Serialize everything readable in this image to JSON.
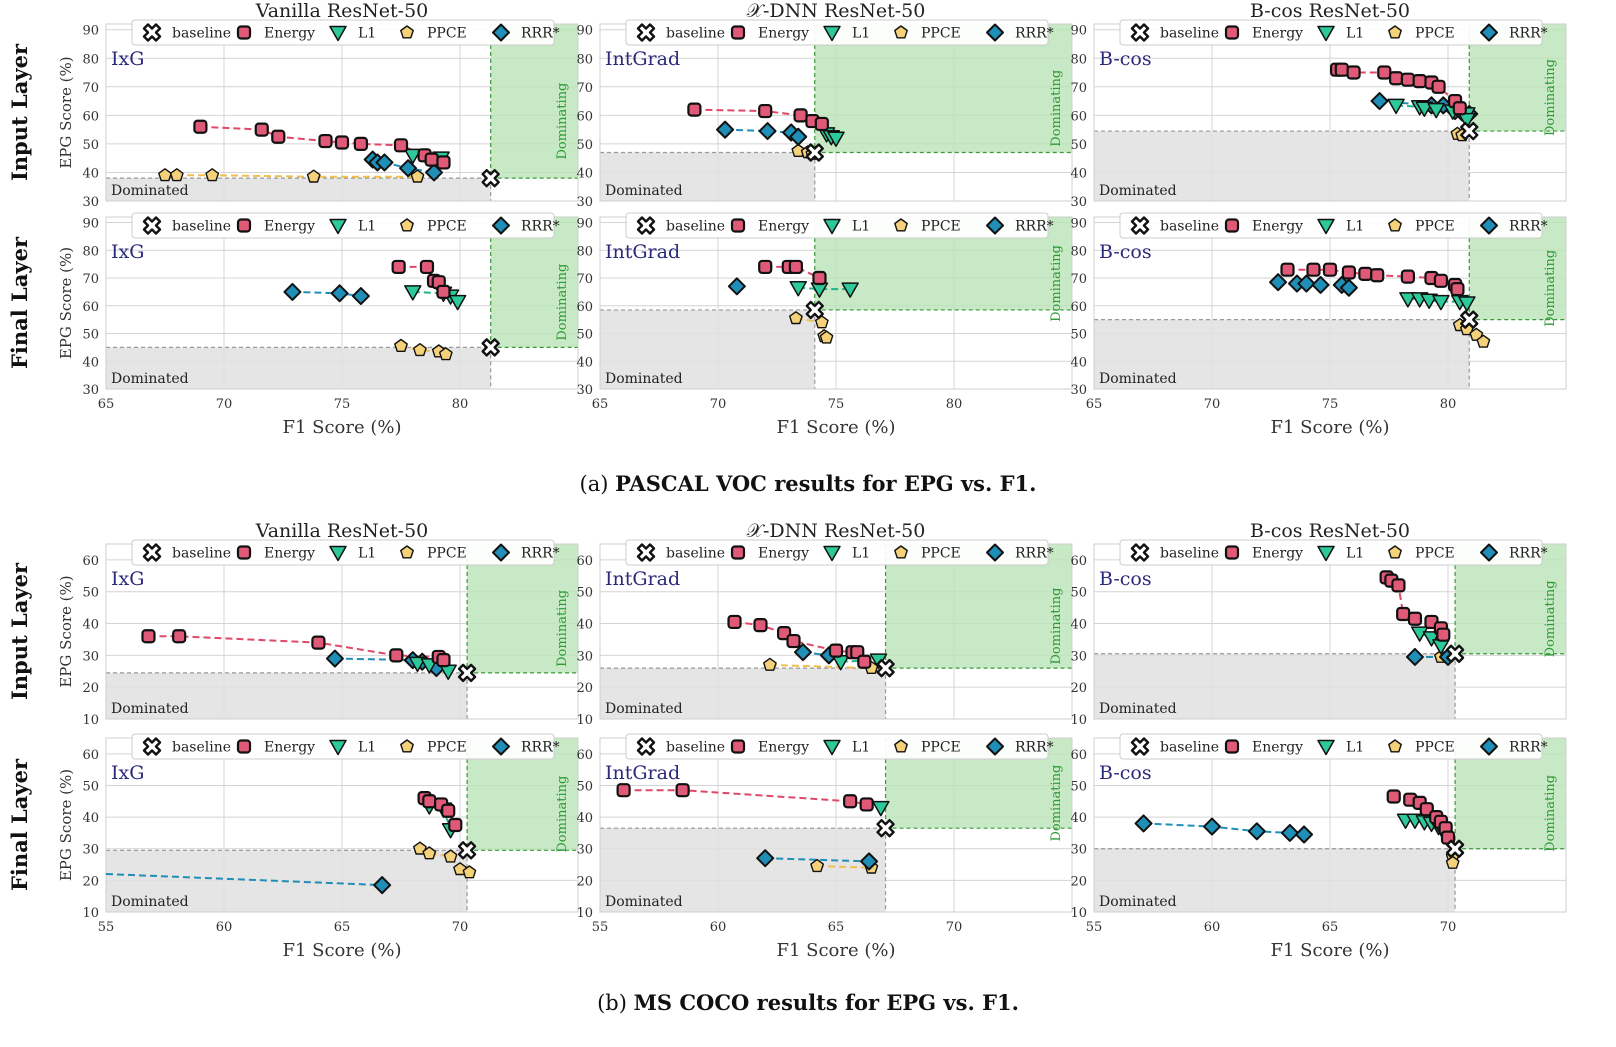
{
  "figure": {
    "captions": [
      {
        "prefix": "(a) ",
        "bold": "PASCAL VOC results for EPG vs. F1."
      },
      {
        "prefix": "(b) ",
        "bold": "MS COCO results for EPG vs. F1."
      }
    ],
    "column_titles": [
      "Vanilla ResNet-50",
      "𝒳-DNN ResNet-50",
      "B-cos ResNet-50"
    ],
    "row_labels": [
      "Input Layer",
      "Final Layer"
    ],
    "ylabel": "EPG Score (%)",
    "xlabel": "F1 Score (%)",
    "legend": [
      {
        "key": "baseline",
        "label": "baseline",
        "marker": "X",
        "color": "#ffffff"
      },
      {
        "key": "energy",
        "label": "Energy",
        "marker": "square",
        "color": "#e05a78"
      },
      {
        "key": "l1",
        "label": "L1",
        "marker": "triangle-down",
        "color": "#2ec99a"
      },
      {
        "key": "ppce",
        "label": "PPCE",
        "marker": "pentagon",
        "color": "#f5d27a"
      },
      {
        "key": "rrr",
        "label": "RRR*",
        "marker": "diamond",
        "color": "#1f8fb8"
      }
    ],
    "region_labels": {
      "dominated": "Dominated",
      "dominating": "Dominating"
    },
    "colors": {
      "dominated_fill": "#e0e0e0",
      "dominating_fill": "#b9e3b6",
      "dominating_text": "#2e9a36",
      "method_text": "#2a2a7a",
      "energy_line": "#e0486a",
      "l1_line": "#1eb686",
      "ppce_line": "#f1bf4e",
      "rrr_line": "#1f8fb8"
    }
  },
  "chart_data": [
    {
      "type": "scatter",
      "id": "voc-ixg-input",
      "dataset": "PASCAL VOC",
      "column": "Vanilla ResNet-50",
      "row": "Input Layer",
      "method": "IxG",
      "xlim": [
        65,
        85
      ],
      "ylim": [
        30,
        92
      ],
      "xticks": [
        65,
        70,
        75,
        80
      ],
      "yticks": [
        30,
        40,
        50,
        60,
        70,
        80,
        90
      ],
      "baseline": [
        81.3,
        38
      ],
      "energy": [
        [
          69,
          56
        ],
        [
          71.6,
          55
        ],
        [
          72.3,
          52.5
        ],
        [
          74.3,
          51
        ],
        [
          75,
          50.5
        ],
        [
          75.8,
          50
        ],
        [
          77.5,
          49.5
        ],
        [
          78.5,
          46
        ],
        [
          78.8,
          44.5
        ],
        [
          79.3,
          43.5
        ]
      ],
      "l1": [
        [
          78,
          46
        ],
        [
          79.2,
          45
        ]
      ],
      "ppce": [
        [
          67.5,
          39
        ],
        [
          68,
          39
        ],
        [
          69.5,
          39
        ],
        [
          73.8,
          38.5
        ],
        [
          78.2,
          38.5
        ]
      ],
      "rrr": [
        [
          76.3,
          44.5
        ],
        [
          76.5,
          43.5
        ],
        [
          76.8,
          43.5
        ],
        [
          77.8,
          41.5
        ],
        [
          78.9,
          40
        ]
      ]
    },
    {
      "type": "scatter",
      "id": "voc-xdnn-input",
      "dataset": "PASCAL VOC",
      "column": "𝒳-DNN ResNet-50",
      "row": "Input Layer",
      "method": "IntGrad",
      "xlim": [
        65,
        85
      ],
      "ylim": [
        30,
        92
      ],
      "xticks": [
        65,
        70,
        75,
        80
      ],
      "yticks": [
        30,
        40,
        50,
        60,
        70,
        80,
        90
      ],
      "baseline": [
        74.1,
        47
      ],
      "energy": [
        [
          69,
          62
        ],
        [
          72,
          61.5
        ],
        [
          73.5,
          60
        ],
        [
          74,
          58
        ],
        [
          74.4,
          57
        ]
      ],
      "l1": [
        [
          74.6,
          53.5
        ],
        [
          74.8,
          52.5
        ],
        [
          75,
          52
        ]
      ],
      "ppce": [
        [
          73.4,
          47.5
        ],
        [
          73.8,
          47
        ],
        [
          74,
          46.5
        ]
      ],
      "rrr": [
        [
          70.3,
          55
        ],
        [
          72.1,
          54.5
        ],
        [
          73.1,
          54
        ],
        [
          73.4,
          52.5
        ]
      ]
    },
    {
      "type": "scatter",
      "id": "voc-bcos-input",
      "dataset": "PASCAL VOC",
      "column": "B-cos ResNet-50",
      "row": "Input Layer",
      "method": "B-cos",
      "xlim": [
        65,
        85
      ],
      "ylim": [
        30,
        92
      ],
      "xticks": [
        65,
        70,
        75,
        80
      ],
      "yticks": [
        30,
        40,
        50,
        60,
        70,
        80,
        90
      ],
      "baseline": [
        80.9,
        54.5
      ],
      "energy": [
        [
          75.3,
          76
        ],
        [
          75.5,
          76
        ],
        [
          76,
          75
        ],
        [
          77.3,
          75
        ],
        [
          77.8,
          73
        ],
        [
          78.3,
          72.5
        ],
        [
          78.8,
          72
        ],
        [
          79.3,
          71.5
        ],
        [
          79.6,
          70
        ],
        [
          80.3,
          65
        ],
        [
          80.5,
          62.5
        ]
      ],
      "l1": [
        [
          77.8,
          63.5
        ],
        [
          78.8,
          63
        ],
        [
          79,
          62.5
        ],
        [
          79.5,
          62
        ],
        [
          80.2,
          61.5
        ],
        [
          80.8,
          60.5
        ],
        [
          80.8,
          58.5
        ]
      ],
      "ppce": [
        [
          80.4,
          53.5
        ],
        [
          80.6,
          53
        ]
      ],
      "rrr": [
        [
          77.1,
          65
        ],
        [
          79.3,
          63.5
        ],
        [
          79.8,
          63.5
        ],
        [
          80.3,
          61.5
        ],
        [
          80.6,
          61
        ],
        [
          80.9,
          60.5
        ]
      ]
    },
    {
      "type": "scatter",
      "id": "voc-ixg-final",
      "dataset": "PASCAL VOC",
      "column": "Vanilla ResNet-50",
      "row": "Final Layer",
      "method": "IxG",
      "xlim": [
        65,
        85
      ],
      "ylim": [
        30,
        92
      ],
      "xticks": [
        65,
        70,
        75,
        80
      ],
      "yticks": [
        30,
        40,
        50,
        60,
        70,
        80,
        90
      ],
      "baseline": [
        81.3,
        45
      ],
      "energy": [
        [
          77.4,
          74
        ],
        [
          78.6,
          74
        ],
        [
          78.9,
          69
        ],
        [
          79.1,
          68.5
        ],
        [
          79.3,
          65
        ]
      ],
      "l1": [
        [
          78,
          65
        ],
        [
          79.3,
          64.5
        ],
        [
          79.6,
          63.5
        ],
        [
          79.9,
          61.5
        ]
      ],
      "ppce": [
        [
          77.5,
          45.5
        ],
        [
          78.3,
          44
        ],
        [
          79.1,
          43.5
        ],
        [
          79.4,
          42.5
        ]
      ],
      "rrr": [
        [
          72.9,
          65
        ],
        [
          74.9,
          64.5
        ],
        [
          75.8,
          63.5
        ]
      ]
    },
    {
      "type": "scatter",
      "id": "voc-xdnn-final",
      "dataset": "PASCAL VOC",
      "column": "𝒳-DNN ResNet-50",
      "row": "Final Layer",
      "method": "IntGrad",
      "xlim": [
        65,
        85
      ],
      "ylim": [
        30,
        92
      ],
      "xticks": [
        65,
        70,
        75,
        80
      ],
      "yticks": [
        30,
        40,
        50,
        60,
        70,
        80,
        90
      ],
      "baseline": [
        74.1,
        58.5
      ],
      "energy": [
        [
          72,
          74
        ],
        [
          73,
          74
        ],
        [
          73.3,
          74
        ],
        [
          74.3,
          70
        ]
      ],
      "l1": [
        [
          73.4,
          66.5
        ],
        [
          74.3,
          66
        ],
        [
          75.6,
          66
        ]
      ],
      "ppce": [
        [
          73.3,
          55.5
        ],
        [
          74.4,
          54
        ],
        [
          74.5,
          49
        ],
        [
          74.6,
          48.5
        ]
      ],
      "rrr": [
        [
          70.8,
          67
        ]
      ]
    },
    {
      "type": "scatter",
      "id": "voc-bcos-final",
      "dataset": "PASCAL VOC",
      "column": "B-cos ResNet-50",
      "row": "Final Layer",
      "method": "B-cos",
      "xlim": [
        65,
        85
      ],
      "ylim": [
        30,
        92
      ],
      "xticks": [
        65,
        70,
        75,
        80
      ],
      "yticks": [
        30,
        40,
        50,
        60,
        70,
        80,
        90
      ],
      "baseline": [
        80.9,
        55
      ],
      "energy": [
        [
          73.2,
          73
        ],
        [
          74.3,
          73
        ],
        [
          75,
          73
        ],
        [
          75.8,
          72
        ],
        [
          76.5,
          71.5
        ],
        [
          77,
          71
        ],
        [
          78.3,
          70.5
        ],
        [
          79.3,
          70
        ],
        [
          79.7,
          69
        ],
        [
          80.3,
          67.5
        ],
        [
          80.4,
          66
        ]
      ],
      "l1": [
        [
          78.3,
          62.5
        ],
        [
          78.8,
          62.5
        ],
        [
          79.2,
          62
        ],
        [
          79.7,
          61.5
        ],
        [
          80.5,
          61.5
        ],
        [
          80.8,
          61
        ]
      ],
      "ppce": [
        [
          80.5,
          53
        ],
        [
          80.8,
          51.5
        ],
        [
          81.2,
          49.5
        ],
        [
          81.5,
          47
        ]
      ],
      "rrr": [
        [
          72.8,
          68.5
        ],
        [
          73.6,
          68
        ],
        [
          74,
          68
        ],
        [
          74.6,
          67.5
        ],
        [
          75.5,
          67.5
        ],
        [
          75.8,
          66.5
        ]
      ]
    },
    {
      "type": "scatter",
      "id": "coco-ixg-input",
      "dataset": "MS COCO",
      "column": "Vanilla ResNet-50",
      "row": "Input Layer",
      "method": "IxG",
      "xlim": [
        55,
        75
      ],
      "ylim": [
        10,
        65
      ],
      "xticks": [
        55,
        60,
        65,
        70
      ],
      "yticks": [
        10,
        20,
        30,
        40,
        50,
        60
      ],
      "baseline": [
        70.3,
        24.5
      ],
      "energy": [
        [
          56.8,
          36
        ],
        [
          58.1,
          36
        ],
        [
          64,
          34
        ],
        [
          67.3,
          30
        ],
        [
          69.1,
          29.5
        ],
        [
          69.3,
          28.5
        ]
      ],
      "l1": [
        [
          68.2,
          27.5
        ],
        [
          68.7,
          27
        ],
        [
          69.5,
          25
        ]
      ],
      "ppce": [],
      "rrr": [
        [
          64.7,
          29
        ],
        [
          68,
          28.5
        ],
        [
          68.4,
          28
        ],
        [
          69,
          26
        ]
      ]
    },
    {
      "type": "scatter",
      "id": "coco-xdnn-input",
      "dataset": "MS COCO",
      "column": "𝒳-DNN ResNet-50",
      "row": "Input Layer",
      "method": "IntGrad",
      "xlim": [
        55,
        75
      ],
      "ylim": [
        10,
        65
      ],
      "xticks": [
        55,
        60,
        65,
        70
      ],
      "yticks": [
        10,
        20,
        30,
        40,
        50,
        60
      ],
      "baseline": [
        67.1,
        26
      ],
      "energy": [
        [
          60.7,
          40.5
        ],
        [
          61.8,
          39.5
        ],
        [
          62.8,
          37
        ],
        [
          63.2,
          34.5
        ],
        [
          65,
          31.5
        ],
        [
          65.7,
          31
        ],
        [
          65.9,
          31
        ],
        [
          66.2,
          28
        ]
      ],
      "l1": [
        [
          66.8,
          28.5
        ],
        [
          65.2,
          28
        ]
      ],
      "ppce": [
        [
          62.2,
          27
        ],
        [
          66.5,
          26
        ]
      ],
      "rrr": [
        [
          63.6,
          31
        ],
        [
          64.7,
          30
        ]
      ]
    },
    {
      "type": "scatter",
      "id": "coco-bcos-input",
      "dataset": "MS COCO",
      "column": "B-cos ResNet-50",
      "row": "Input Layer",
      "method": "B-cos",
      "xlim": [
        55,
        75
      ],
      "ylim": [
        10,
        65
      ],
      "xticks": [
        55,
        60,
        65,
        70
      ],
      "yticks": [
        10,
        20,
        30,
        40,
        50,
        60
      ],
      "baseline": [
        70.3,
        30.5
      ],
      "energy": [
        [
          67.4,
          54.5
        ],
        [
          67.6,
          53.5
        ],
        [
          67.9,
          52
        ],
        [
          68.1,
          43
        ],
        [
          68.6,
          41.5
        ],
        [
          69.3,
          40.5
        ],
        [
          69.7,
          38.5
        ],
        [
          69.8,
          36.5
        ]
      ],
      "l1": [
        [
          68.8,
          37
        ],
        [
          69.3,
          35.5
        ],
        [
          69.7,
          33
        ]
      ],
      "ppce": [
        [
          69.7,
          29.5
        ]
      ],
      "rrr": [
        [
          68.6,
          29.5
        ],
        [
          70,
          29.5
        ]
      ]
    },
    {
      "type": "scatter",
      "id": "coco-ixg-final",
      "dataset": "MS COCO",
      "column": "Vanilla ResNet-50",
      "row": "Final Layer",
      "method": "IxG",
      "xlim": [
        55,
        75
      ],
      "ylim": [
        10,
        65
      ],
      "xticks": [
        55,
        60,
        65,
        70
      ],
      "yticks": [
        10,
        20,
        30,
        40,
        50,
        60
      ],
      "baseline": [
        70.3,
        29.5
      ],
      "energy": [
        [
          68.5,
          46
        ],
        [
          68.7,
          45
        ],
        [
          69.2,
          44
        ],
        [
          69.5,
          42
        ],
        [
          69.8,
          37.5
        ]
      ],
      "l1": [
        [
          68.7,
          43.5
        ],
        [
          69.3,
          42.5
        ],
        [
          69.6,
          36
        ]
      ],
      "ppce": [
        [
          68.3,
          30
        ],
        [
          68.7,
          28.5
        ],
        [
          69.6,
          27.5
        ],
        [
          70,
          23.5
        ],
        [
          70.4,
          22.5
        ]
      ],
      "rrr": [
        [
          66.7,
          18.5
        ]
      ],
      "rrr_extends_left_to": [
        55,
        22
      ]
    },
    {
      "type": "scatter",
      "id": "coco-xdnn-final",
      "dataset": "MS COCO",
      "column": "𝒳-DNN ResNet-50",
      "row": "Final Layer",
      "method": "IntGrad",
      "xlim": [
        55,
        75
      ],
      "ylim": [
        10,
        65
      ],
      "xticks": [
        55,
        60,
        65,
        70
      ],
      "yticks": [
        10,
        20,
        30,
        40,
        50,
        60
      ],
      "baseline": [
        67.1,
        36.5
      ],
      "energy": [
        [
          56,
          48.5
        ],
        [
          58.5,
          48.5
        ],
        [
          65.6,
          45
        ],
        [
          66.3,
          44
        ]
      ],
      "l1": [
        [
          66.9,
          43
        ]
      ],
      "ppce": [
        [
          64.2,
          24.5
        ],
        [
          66.5,
          24
        ]
      ],
      "rrr": [
        [
          62,
          27
        ],
        [
          66.4,
          26
        ]
      ]
    },
    {
      "type": "scatter",
      "id": "coco-bcos-final",
      "dataset": "MS COCO",
      "column": "B-cos ResNet-50",
      "row": "Final Layer",
      "method": "B-cos",
      "xlim": [
        55,
        75
      ],
      "ylim": [
        10,
        65
      ],
      "xticks": [
        55,
        60,
        65,
        70
      ],
      "yticks": [
        10,
        20,
        30,
        40,
        50,
        60
      ],
      "baseline": [
        70.3,
        30
      ],
      "energy": [
        [
          67.7,
          46.5
        ],
        [
          68.4,
          45.5
        ],
        [
          68.8,
          44.5
        ],
        [
          69.1,
          42.5
        ],
        [
          69.5,
          40
        ],
        [
          69.7,
          38.5
        ],
        [
          69.9,
          36.5
        ],
        [
          70,
          33.5
        ]
      ],
      "l1": [
        [
          68.2,
          39
        ],
        [
          68.6,
          39
        ],
        [
          69,
          38.5
        ],
        [
          69.3,
          38
        ],
        [
          69.6,
          37
        ],
        [
          69.8,
          35.5
        ]
      ],
      "ppce": [
        [
          70.2,
          27.5
        ],
        [
          70.2,
          25.5
        ]
      ],
      "rrr": [
        [
          57.1,
          38
        ],
        [
          60,
          37
        ],
        [
          61.9,
          35.5
        ],
        [
          63.3,
          35
        ],
        [
          63.9,
          34.5
        ]
      ]
    }
  ]
}
